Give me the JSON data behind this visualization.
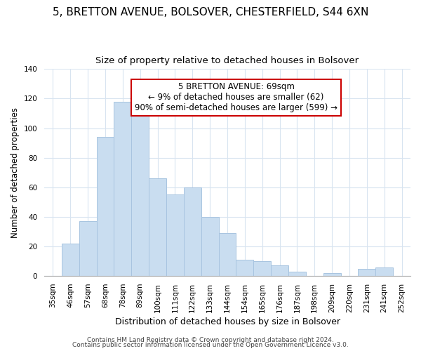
{
  "title": "5, BRETTON AVENUE, BOLSOVER, CHESTERFIELD, S44 6XN",
  "subtitle": "Size of property relative to detached houses in Bolsover",
  "xlabel": "Distribution of detached houses by size in Bolsover",
  "ylabel": "Number of detached properties",
  "bar_labels": [
    "35sqm",
    "46sqm",
    "57sqm",
    "68sqm",
    "78sqm",
    "89sqm",
    "100sqm",
    "111sqm",
    "122sqm",
    "133sqm",
    "144sqm",
    "154sqm",
    "165sqm",
    "176sqm",
    "187sqm",
    "198sqm",
    "209sqm",
    "220sqm",
    "231sqm",
    "241sqm",
    "252sqm"
  ],
  "bar_values": [
    0,
    22,
    37,
    94,
    118,
    112,
    66,
    55,
    60,
    40,
    29,
    11,
    10,
    7,
    3,
    0,
    2,
    0,
    5,
    6,
    0
  ],
  "bar_color": "#c9ddf0",
  "bar_edge_color": "#a8c4e0",
  "annotation_line1": "5 BRETTON AVENUE: 69sqm",
  "annotation_line2": "← 9% of detached houses are smaller (62)",
  "annotation_line3": "90% of semi-detached houses are larger (599) →",
  "annotation_box_color": "#ffffff",
  "annotation_box_edge_color": "#cc0000",
  "ylim": [
    0,
    140
  ],
  "yticks": [
    0,
    20,
    40,
    60,
    80,
    100,
    120,
    140
  ],
  "footnote1": "Contains HM Land Registry data © Crown copyright and database right 2024.",
  "footnote2": "Contains public sector information licensed under the Open Government Licence v3.0.",
  "background_color": "#ffffff",
  "grid_color": "#d8e4f0",
  "title_fontsize": 11,
  "subtitle_fontsize": 9.5,
  "xlabel_fontsize": 9,
  "ylabel_fontsize": 8.5,
  "tick_fontsize": 7.5,
  "annotation_fontsize": 8.5,
  "footnote_fontsize": 6.5
}
